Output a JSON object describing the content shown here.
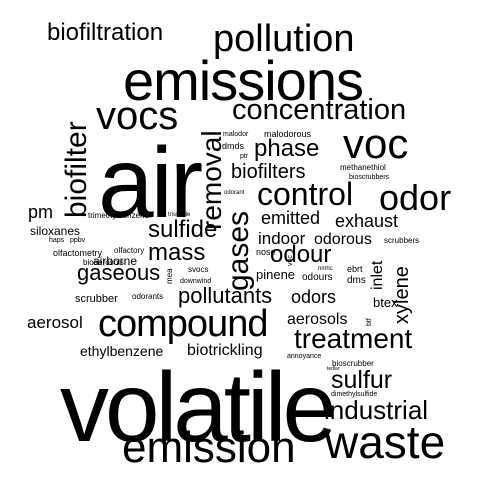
{
  "cloud": {
    "text_color": "#000000",
    "background": "#ffffff",
    "words": {
      "volatile": "volatile",
      "air": "air",
      "emissions": "emissions",
      "emission": "emission",
      "waste": "waste",
      "compound": "compound",
      "vocs": "vocs",
      "pollution": "pollution",
      "voc": "voc",
      "control": "control",
      "odor": "odor",
      "concentration": "concentration",
      "biofilter": "biofilter",
      "removal": "removal",
      "gases": "gases",
      "treatment": "treatment",
      "industrial": "industrial",
      "sulfur": "sulfur",
      "biofiltration": "biofiltration",
      "phase": "phase",
      "biofilters": "biofilters",
      "mass": "mass",
      "sulfide": "sulfide",
      "pollutants": "pollutants",
      "gaseous": "gaseous",
      "odour": "odour",
      "xylene": "xylene",
      "exhaust": "exhaust",
      "emitted": "emitted",
      "indoor": "indoor",
      "odorous": "odorous",
      "aerosol": "aerosol",
      "aerosols": "aerosols",
      "odors": "odors",
      "biotrickling": "biotrickling",
      "ethylbenzene": "ethylbenzene",
      "pm": "pm",
      "inlet": "inlet",
      "airborne": "airborne",
      "siloxanes": "siloxanes",
      "pinene": "pinene",
      "btex": "btex",
      "scrubber": "scrubber",
      "trimethylbenzene": "trimethylbenzene",
      "trisulfide": "trisulfide",
      "haps": "haps",
      "ppbv": "ppbv",
      "olfactometry": "olfactometry",
      "olfactory": "olfactory",
      "bioaerosols": "bioaerosols",
      "mea": "mea",
      "svocs": "svocs",
      "downwind": "downwind",
      "odorants": "odorants",
      "nose": "nose",
      "voc_small": "voc",
      "nmhc": "nmhc",
      "odours": "odours",
      "ebrt": "ebrt",
      "dms": "dms",
      "scrubbers": "scrubbers",
      "malodor": "malodor",
      "malodorous": "malodorous",
      "dmds": "dmds",
      "ptr": "ptr",
      "bioscrubbers": "bioscrubbers",
      "methanethiol": "methanethiol",
      "odorant": "odorant",
      "btf": "btf",
      "annoyance": "annoyance",
      "tedlar": "tedlar",
      "bioscrubber": "bioscrubber",
      "dimethylsulfide": "dimethylsulfide"
    }
  }
}
